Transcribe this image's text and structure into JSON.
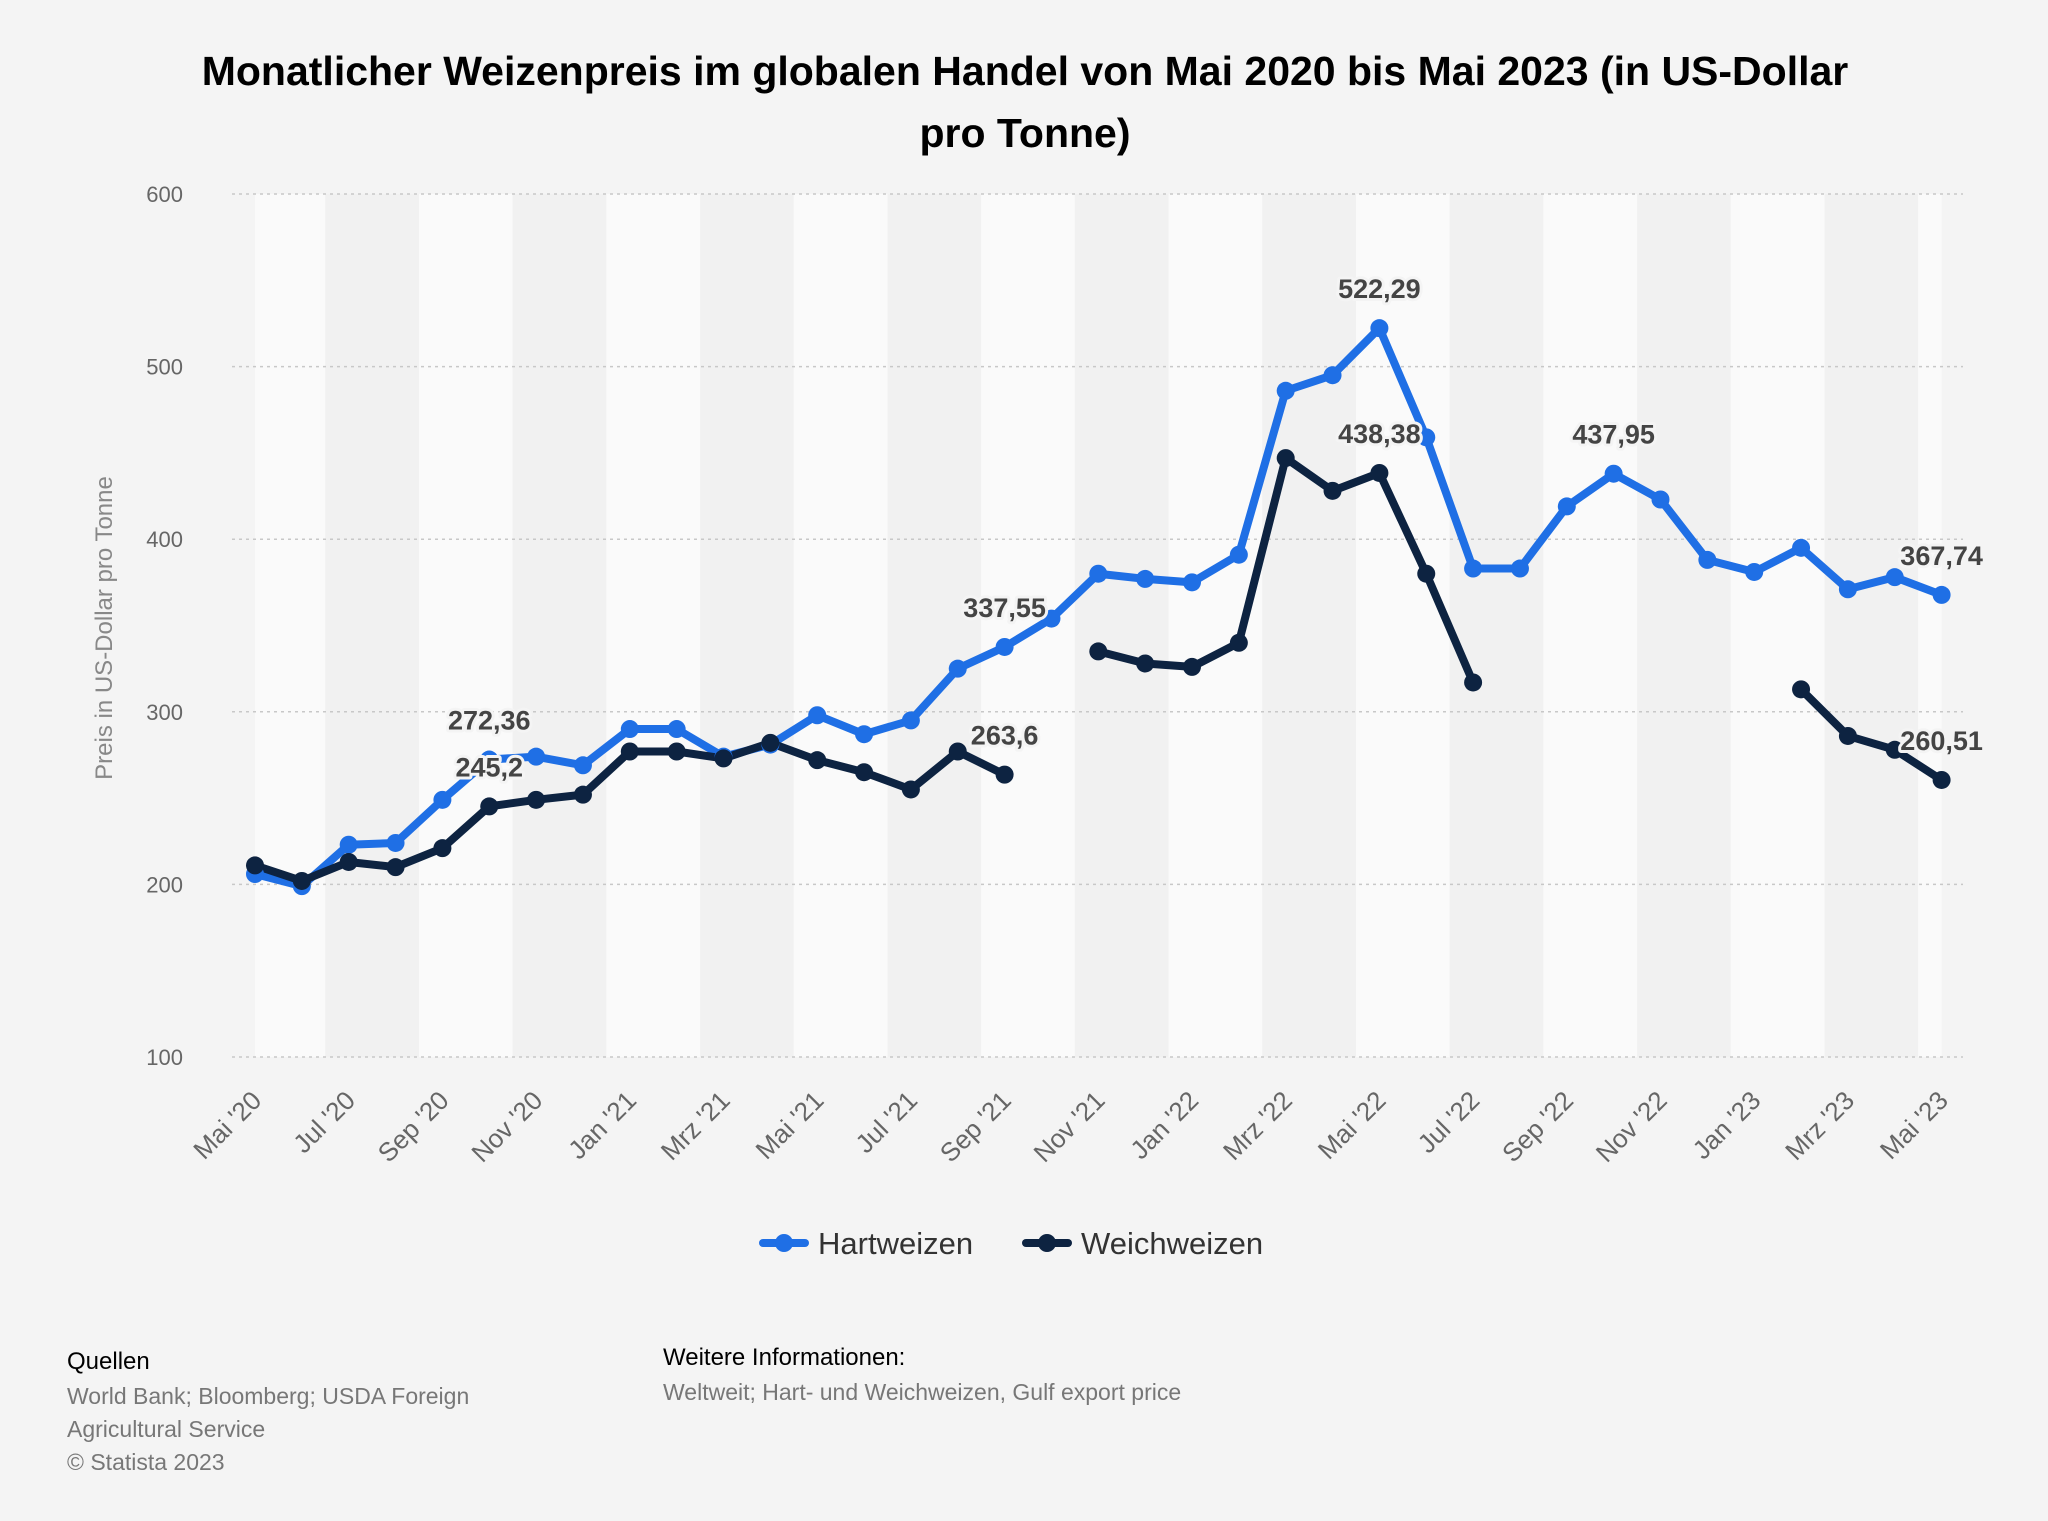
{
  "chart_data": {
    "type": "line",
    "title": "Monatlicher Weizenpreis im globalen Handel von Mai 2020 bis Mai 2023 (in US-Dollar pro Tonne)",
    "ylabel": "Preis in US-Dollar pro Tonne",
    "xlabel": "",
    "ylim": [
      100,
      600
    ],
    "yticks": [
      100,
      200,
      300,
      400,
      500,
      600
    ],
    "grid": true,
    "legend_position": "bottom",
    "x": [
      "Mai '20",
      "Jun '20",
      "Jul '20",
      "Aug '20",
      "Sep '20",
      "Okt '20",
      "Nov '20",
      "Dez '20",
      "Jan '21",
      "Feb '21",
      "Mrz '21",
      "Apr '21",
      "Mai '21",
      "Jun '21",
      "Jul '21",
      "Aug '21",
      "Sep '21",
      "Okt '21",
      "Nov '21",
      "Dez '21",
      "Jan '22",
      "Feb '22",
      "Mrz '22",
      "Apr '22",
      "Mai '22",
      "Jun '22",
      "Jul '22",
      "Aug '22",
      "Sep '22",
      "Okt '22",
      "Nov '22",
      "Dez '22",
      "Jan '23",
      "Feb '23",
      "Mrz '23",
      "Apr '23",
      "Mai '23"
    ],
    "x_tick_labels": [
      "Mai '20",
      "Jul '20",
      "Sep '20",
      "Nov '20",
      "Jan '21",
      "Mrz '21",
      "Mai '21",
      "Jul '21",
      "Sep '21",
      "Nov '21",
      "Jan '22",
      "Mrz '22",
      "Mai '22",
      "Jul '22",
      "Sep '22",
      "Nov '22",
      "Jan '23",
      "Mrz '23",
      "Mai '23"
    ],
    "series": [
      {
        "name": "Hartweizen",
        "color": "#1f6fe5",
        "values": [
          206,
          199,
          223,
          224,
          249,
          272.36,
          274,
          269,
          290,
          290,
          274,
          281,
          298,
          287,
          295,
          325,
          337.55,
          354,
          380,
          377,
          375,
          391,
          486,
          495,
          522.29,
          459,
          383,
          383,
          419,
          437.95,
          423,
          388,
          381,
          395,
          371,
          378,
          367.74
        ],
        "labels": {
          "5": "272,36",
          "16": "337,55",
          "24": "522,29",
          "29": "437,95",
          "36": "367,74"
        }
      },
      {
        "name": "Weichweizen",
        "color": "#0d2341",
        "values": [
          211,
          202,
          213,
          210,
          221,
          245.2,
          249,
          252,
          277,
          277,
          273,
          282,
          272,
          265,
          255,
          277,
          263.6,
          null,
          335,
          328,
          326,
          340,
          447,
          428,
          438.38,
          380,
          317,
          null,
          null,
          null,
          null,
          null,
          null,
          313,
          286,
          278,
          260.51
        ],
        "labels": {
          "5": "245,2",
          "16": "263,6",
          "24": "438,38",
          "36": "260,51"
        }
      }
    ]
  },
  "footer": {
    "sources_heading": "Quellen",
    "sources_line1": "World Bank; Bloomberg; USDA Foreign",
    "sources_line2": "Agricultural Service",
    "copyright": "© Statista 2023",
    "info_heading": "Weitere Informationen:",
    "info_text": "Weltweit; Hart- und Weichweizen, Gulf export price"
  }
}
